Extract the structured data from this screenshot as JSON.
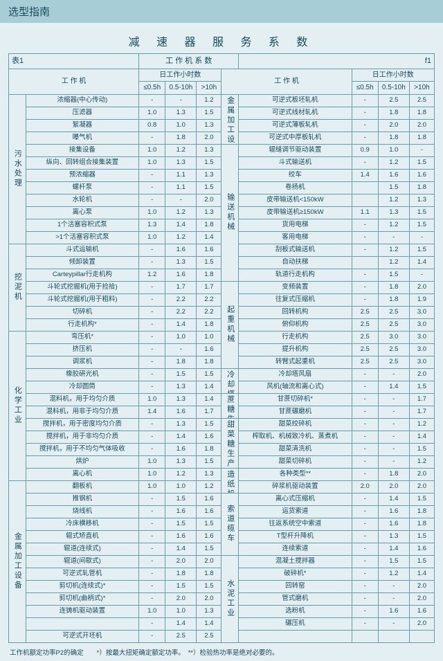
{
  "header": {
    "title": "选型指南"
  },
  "mainTitle": "减 速 器 服 务 系 数",
  "tableCaption": {
    "left": "表1",
    "center": "工 作 机 系 数",
    "right": "f1"
  },
  "colHeads": {
    "machine": "工 作 机",
    "hoursGroup": "日工作小时数",
    "h1": "≤0.5h",
    "h2": "0.5-10h",
    "h3": ">10h"
  },
  "leftCats": [
    {
      "name": "污水处理",
      "span": 12,
      "rows": [
        {
          "n": "浓缩器(中心传动)",
          "v": [
            "-",
            "-",
            "1.2"
          ]
        },
        {
          "n": "压滤器",
          "v": [
            "1.0",
            "1.3",
            "1.5"
          ]
        },
        {
          "n": "絮凝器",
          "v": [
            "0.8",
            "1.0",
            "1.3"
          ]
        },
        {
          "n": "曝气机",
          "v": [
            "-",
            "1.8",
            "2.0"
          ]
        },
        {
          "n": "接集设备",
          "v": [
            "1.0",
            "1.2",
            "1.3"
          ]
        },
        {
          "n": "纵向、回转组合接集装置",
          "v": [
            "1.0",
            "1.3",
            "1.5"
          ]
        },
        {
          "n": "预浓缩器",
          "v": [
            "-",
            "1.1",
            "1.3"
          ]
        },
        {
          "n": "螺杆泵",
          "v": [
            "-",
            "1.1",
            "1.5"
          ]
        },
        {
          "n": "水轮机",
          "v": [
            "-",
            "-",
            "2.0"
          ]
        },
        {
          "n": "离心泵",
          "v": [
            "1.0",
            "1.2",
            "1.3"
          ]
        },
        {
          "n": "1个活塞容积式泵",
          "v": [
            "1.3",
            "1.4",
            "1.8"
          ]
        },
        {
          "n": ">1个活塞容积式泵",
          "v": [
            "1.0",
            "1.2",
            "1.4"
          ]
        }
      ]
    },
    {
      "name": "挖泥机",
      "span": 7,
      "rows": [
        {
          "n": "斗式运输机",
          "v": [
            "-",
            "1.6",
            "1.6"
          ]
        },
        {
          "n": "倾卸装置",
          "v": [
            "-",
            "1.3",
            "1.5"
          ]
        },
        {
          "n": "Carteypillar行走机构",
          "v": [
            "1.2",
            "1.6",
            "1.8"
          ]
        },
        {
          "n": "斗轮式挖掘机(用于捡拾)",
          "v": [
            "-",
            "1.7",
            "1.7"
          ]
        },
        {
          "n": "斗轮式挖掘机(用于粗料)",
          "v": [
            "-",
            "2.2",
            "2.2"
          ]
        },
        {
          "n": "切碎机",
          "v": [
            "-",
            "2.2",
            "2.2"
          ]
        },
        {
          "n": "行走机构*",
          "v": [
            "-",
            "1.4",
            "1.8"
          ]
        }
      ]
    },
    {
      "name": "化学工业",
      "span": 12,
      "rows": [
        {
          "n": "弯压机*",
          "v": [
            "-",
            "1.0",
            "1.0"
          ]
        },
        {
          "n": "挤压机",
          "v": [
            "-",
            "-",
            "1.6"
          ]
        },
        {
          "n": "调浆机",
          "v": [
            "-",
            "1.8",
            "1.8"
          ]
        },
        {
          "n": "橡胶硏光机",
          "v": [
            "-",
            "1.5",
            "1.5"
          ]
        },
        {
          "n": "冷却圆筒",
          "v": [
            "-",
            "1.3",
            "1.4"
          ]
        },
        {
          "n": "混料机，用于均匀介质",
          "v": [
            "1.0",
            "1.3",
            "1.4"
          ]
        },
        {
          "n": "混料机，用非于均匀介质",
          "v": [
            "1.4",
            "1.6",
            "1.7"
          ]
        },
        {
          "n": "搅拌机，用于密度均匀介质",
          "v": [
            "-",
            "1.3",
            "1.5"
          ]
        },
        {
          "n": "搅拌机，用于非均匀介质",
          "v": [
            "-",
            "1.4",
            "1.6"
          ]
        },
        {
          "n": "搅拌机，用于不均匀气体吸收",
          "v": [
            "-",
            "1.6",
            "1.8"
          ]
        },
        {
          "n": "烘炉",
          "v": [
            "1.0",
            "1.3",
            "1.5"
          ]
        },
        {
          "n": "离心机",
          "v": [
            "1.0",
            "1.2",
            "1.3"
          ]
        }
      ]
    },
    {
      "name": "金属加工设备",
      "span": 13,
      "rows": [
        {
          "n": "翻板机",
          "v": [
            "1.0",
            "1.0",
            "1.2"
          ]
        },
        {
          "n": "推钢机",
          "v": [
            "-",
            "1.5",
            "1.6"
          ]
        },
        {
          "n": "烧线机",
          "v": [
            "-",
            "1.6",
            "1.6"
          ]
        },
        {
          "n": "冷床横移机",
          "v": [
            "-",
            "1.5",
            "1.5"
          ]
        },
        {
          "n": "辊式矫直机",
          "v": [
            "-",
            "1.6",
            "1.6"
          ]
        },
        {
          "n": "辊道(连续式)",
          "v": [
            "-",
            "1.4",
            "1.5"
          ]
        },
        {
          "n": "辊道(间歇式)",
          "v": [
            "-",
            "2.0",
            "2.0"
          ]
        },
        {
          "n": "可逆式轧管机",
          "v": [
            "-",
            "1.8",
            "1.8"
          ]
        },
        {
          "n": "剪切机(连续式)*",
          "v": [
            "-",
            "1.5",
            "1.5"
          ]
        },
        {
          "n": "剪切机(曲柄式)*",
          "v": [
            "-",
            "2.0",
            "2.0"
          ]
        },
        {
          "n": "连铸机驱动装置",
          "v": [
            "1.0",
            "1.0",
            "1.3"
          ]
        },
        {
          "n": "",
          "v": [
            "-",
            "1.4",
            "1.4"
          ]
        },
        {
          "n": "可逆式开坯机",
          "v": [
            "-",
            "2.5",
            "2.5"
          ]
        }
      ]
    }
  ],
  "rightCats": [
    {
      "name": "金属加工设备",
      "span": 4,
      "rows": [
        {
          "n": "可逆式板坯轧机",
          "v": [
            "-",
            "2.5",
            "2.5"
          ]
        },
        {
          "n": "可逆式线材轧机",
          "v": [
            "-",
            "1.8",
            "1.8"
          ]
        },
        {
          "n": "可逆式薄板轧机",
          "v": [
            "-",
            "2.0",
            "2.0"
          ]
        },
        {
          "n": "可逆式中厚板轧机",
          "v": [
            "-",
            "1.8",
            "1.8"
          ]
        }
      ]
    },
    {
      "name": "输送机械",
      "span": 11,
      "rows": [
        {
          "n": "辊缝调节驱动装置",
          "v": [
            "0.9",
            "1.0",
            "-"
          ]
        },
        {
          "n": "斗式输送机",
          "v": [
            "-",
            "1.2",
            "1.5"
          ]
        },
        {
          "n": "绞车",
          "v": [
            "1.4",
            "1.6",
            "1.6"
          ]
        },
        {
          "n": "卷扬机",
          "v": [
            "",
            "1.5",
            "1.8"
          ]
        },
        {
          "n": "皮带输送机<150kW",
          "v": [
            "",
            "1.2",
            "1.3"
          ]
        },
        {
          "n": "皮带输送机≥150kW",
          "v": [
            "1.1",
            "1.3",
            "1.5"
          ]
        },
        {
          "n": "货用电梯",
          "v": [
            "-",
            "1.2",
            "1.5"
          ]
        },
        {
          "n": "客用电梯",
          "v": [
            "-",
            "-",
            "-"
          ]
        },
        {
          "n": "刮板式输送机",
          "v": [
            "-",
            "1.2",
            "1.5"
          ]
        },
        {
          "n": "自动扶梯",
          "v": [
            "",
            "1.2",
            "1.4"
          ]
        },
        {
          "n": "轨道行走机构",
          "v": [
            "-",
            "1.5",
            "-"
          ]
        }
      ]
    },
    {
      "name": "起重机械",
      "span": 7,
      "rows": [
        {
          "n": "变频装置",
          "v": [
            "-",
            "1.8",
            "2.0"
          ]
        },
        {
          "n": "往复式压缩机",
          "v": [
            "-",
            "1.8",
            "1.9"
          ]
        },
        {
          "n": "回转机构",
          "v": [
            "2.5",
            "2.5",
            "3.0"
          ]
        },
        {
          "n": "俯仰机构",
          "v": [
            "2.5",
            "2.5",
            "3.0"
          ]
        },
        {
          "n": "行走机构",
          "v": [
            "2.5",
            "3.0",
            "3.0"
          ]
        },
        {
          "n": "提升机构",
          "v": [
            "2.5",
            "2.5",
            "3.0"
          ]
        },
        {
          "n": "转臂式起重机",
          "v": [
            "2.5",
            "2.5",
            "3.0"
          ]
        }
      ]
    },
    {
      "name": "冷却塔",
      "span": 2,
      "rows": [
        {
          "n": "冷却塔风扇",
          "v": [
            "-",
            "-",
            "2.0"
          ]
        },
        {
          "n": "风机(轴流和离心式)",
          "v": [
            "-",
            "1.4",
            "1.5"
          ]
        }
      ]
    },
    {
      "name": "蔗糖生产",
      "span": 2,
      "rows": [
        {
          "n": "甘蔗切碎机*",
          "v": [
            "-",
            "-",
            "1.7"
          ]
        },
        {
          "n": "甘蔗碾磨机",
          "v": [
            "-",
            "-",
            "1.7"
          ]
        }
      ]
    },
    {
      "name": "甜菜糖生产",
      "span": 4,
      "rows": [
        {
          "n": "甜菜绞碎机",
          "v": [
            "-",
            "-",
            "1.2"
          ]
        },
        {
          "n": "榨取机、机械致冷机、蒸煮机",
          "v": [
            "-",
            "-",
            "1.4"
          ]
        },
        {
          "n": "甜菜清洗机",
          "v": [
            "-",
            "-",
            "1.5"
          ]
        },
        {
          "n": "甜菜切碎机",
          "v": [
            "-",
            "-",
            "1.2"
          ]
        }
      ]
    },
    {
      "name": "造纸机械",
      "span": 2,
      "rows": [
        {
          "n": "各种类型**",
          "v": [
            "-",
            "1.8",
            "2.0"
          ]
        },
        {
          "n": "碎浆机驱动装置",
          "v": [
            "2.0",
            "2.0",
            "2.0"
          ]
        }
      ]
    },
    {
      "name": "索道缆车",
      "span": 5,
      "rows": [
        {
          "n": "离心式压缩机",
          "v": [
            "-",
            "1.4",
            "1.5"
          ]
        },
        {
          "n": "运货索道",
          "v": [
            "-",
            "1.6",
            "1.8"
          ]
        },
        {
          "n": "往返系统空中索道",
          "v": [
            "-",
            "1.6",
            "1.8"
          ]
        },
        {
          "n": "T型杆升降机",
          "v": [
            "-",
            "1.3",
            "1.5"
          ]
        },
        {
          "n": "连续索道",
          "v": [
            "-",
            "1.4",
            "1.6"
          ]
        }
      ]
    },
    {
      "name": "水泥工业",
      "span": 7,
      "rows": [
        {
          "n": "混凝土搅拌器",
          "v": [
            "-",
            "1.5",
            "1.5"
          ]
        },
        {
          "n": "破碎机*",
          "v": [
            "-",
            "1.2",
            "1.4"
          ]
        },
        {
          "n": "回转窑",
          "v": [
            "-",
            "-",
            "2.0"
          ]
        },
        {
          "n": "管式磨机",
          "v": [
            "-",
            "-",
            "2.0"
          ]
        },
        {
          "n": "选粉机",
          "v": [
            "-",
            "1.6",
            "1.6"
          ]
        },
        {
          "n": "碾压机",
          "v": [
            "-",
            "-",
            "2.0"
          ]
        },
        {
          "n": "",
          "v": [
            "",
            "",
            ""
          ]
        }
      ]
    }
  ],
  "footnote": "工作机额定功率P2的确定　　*）按最大扭矩确定额定功率。　**）检验热功率是绝对必要的。"
}
